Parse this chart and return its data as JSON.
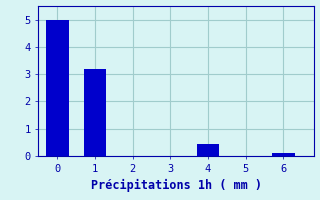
{
  "bar_positions": [
    0,
    1,
    2,
    3,
    4,
    5,
    6
  ],
  "bar_heights": [
    5.0,
    3.2,
    0.0,
    0.0,
    0.45,
    0.0,
    0.1
  ],
  "bar_color": "#0000cc",
  "bar_width": 0.6,
  "background_color": "#d8f4f4",
  "xlabel": "Précipitations 1h ( mm )",
  "xlim": [
    -0.5,
    6.8
  ],
  "ylim": [
    0,
    5.5
  ],
  "yticks": [
    0,
    1,
    2,
    3,
    4,
    5
  ],
  "xticks": [
    0,
    1,
    2,
    3,
    4,
    5,
    6
  ],
  "grid_color": "#a0cccc",
  "axis_color": "#0000aa",
  "tick_color": "#0000aa",
  "label_color": "#0000aa",
  "label_fontsize": 8.5,
  "tick_fontsize": 7.5
}
